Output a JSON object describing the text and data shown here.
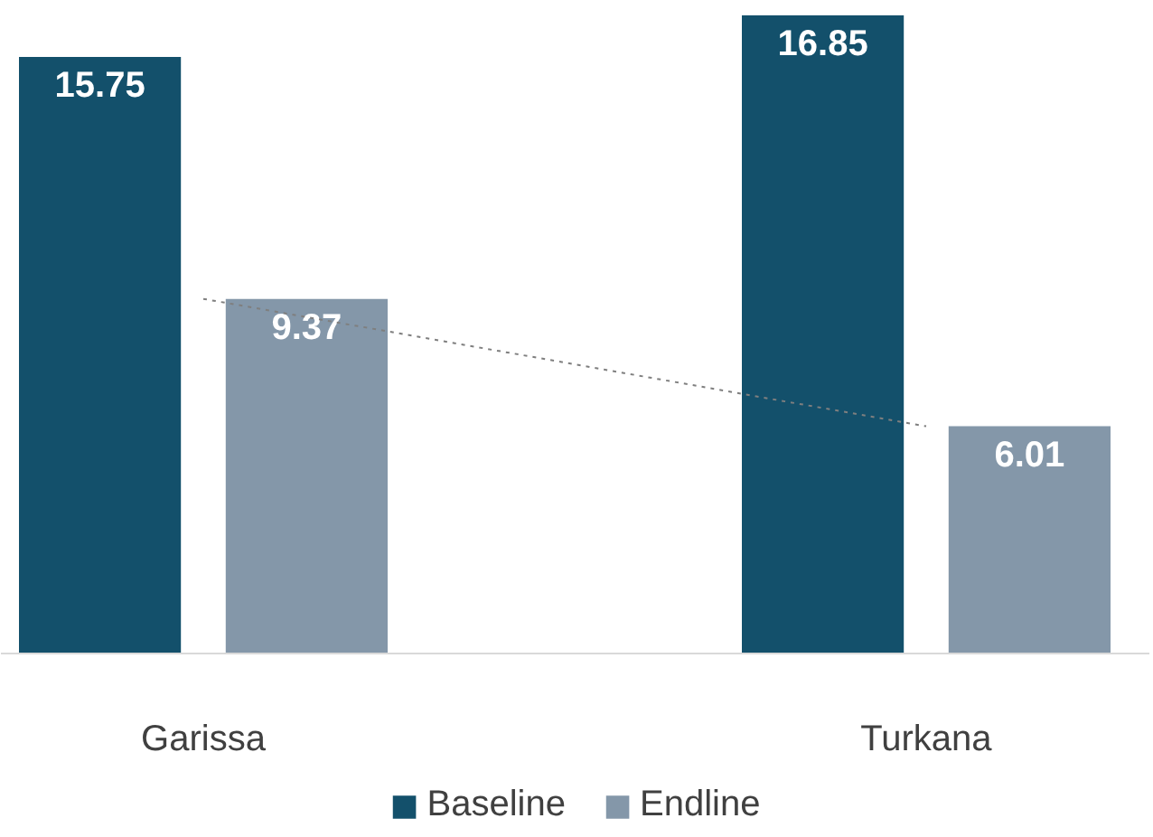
{
  "chart_data": {
    "type": "bar",
    "categories": [
      "Garissa",
      "Turkana"
    ],
    "series": [
      {
        "name": "Baseline",
        "color": "#13506b",
        "values": [
          15.75,
          16.85
        ]
      },
      {
        "name": "Endline",
        "color": "#8497a9",
        "values": [
          9.37,
          6.01
        ]
      },
      {
        "type": "line",
        "color": "#7f7f7f",
        "line_style": "dotted",
        "values": [
          9.37,
          6.01
        ],
        "value_labels": [
          null,
          null
        ]
      }
    ],
    "data_labels": true,
    "legend": "bottom"
  }
}
